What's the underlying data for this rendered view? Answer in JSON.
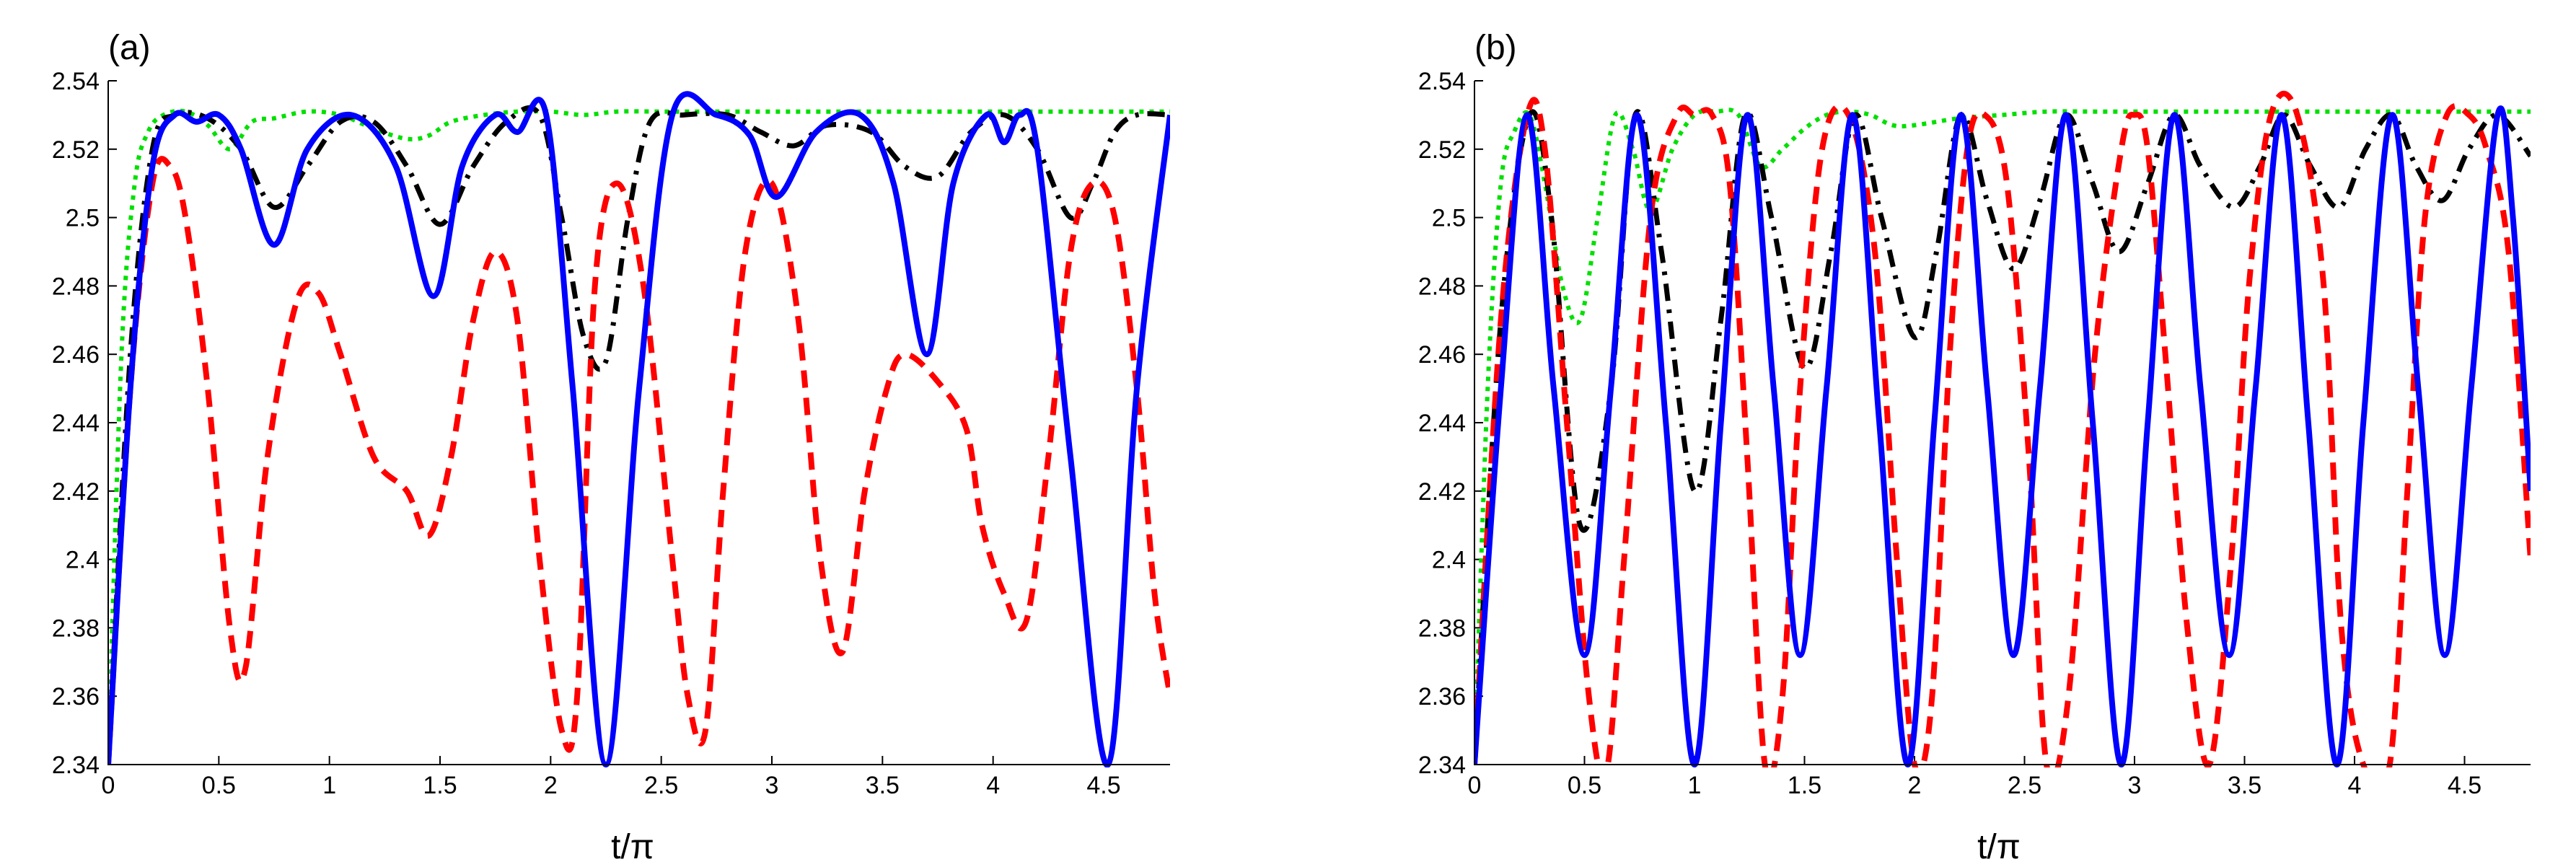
{
  "colors": {
    "blue": "#0000ff",
    "red": "#ff0000",
    "black": "#000000",
    "green": "#00e000"
  },
  "chart_data": [
    {
      "type": "line",
      "panel_label": "(a)",
      "xlabel": "t/π",
      "ylabel": "",
      "xlim": [
        0,
        4.8
      ],
      "ylim": [
        2.34,
        2.54
      ],
      "xticks": [
        "0",
        "0.5",
        "1",
        "1.5",
        "2",
        "2.5",
        "3",
        "3.5",
        "4",
        "4.5"
      ],
      "yticks": [
        "2.34",
        "2.36",
        "2.38",
        "2.4",
        "2.42",
        "2.44",
        "2.46",
        "2.48",
        "2.5",
        "2.52",
        "2.54"
      ],
      "series": [
        {
          "name": "solid-blue",
          "color": "blue",
          "style": "solid",
          "x": [
            0,
            0.1,
            0.2,
            0.3,
            0.4,
            0.5,
            0.6,
            0.75,
            0.9,
            1.1,
            1.3,
            1.47,
            1.6,
            1.75,
            1.85,
            1.98,
            2.1,
            2.25,
            2.4,
            2.55,
            2.75,
            2.9,
            3.02,
            3.2,
            3.4,
            3.55,
            3.7,
            3.82,
            3.97,
            4.05,
            4.12,
            4.2,
            4.35,
            4.52,
            4.65,
            4.8
          ],
          "y": [
            2.34,
            2.45,
            2.515,
            2.53,
            2.528,
            2.53,
            2.52,
            2.492,
            2.52,
            2.53,
            2.515,
            2.477,
            2.515,
            2.53,
            2.525,
            2.53,
            2.45,
            2.34,
            2.45,
            2.53,
            2.53,
            2.524,
            2.506,
            2.525,
            2.53,
            2.51,
            2.46,
            2.51,
            2.53,
            2.522,
            2.53,
            2.52,
            2.43,
            2.34,
            2.45,
            2.53
          ]
        },
        {
          "name": "dashed-red",
          "color": "red",
          "style": "dashed",
          "x": [
            0,
            0.1,
            0.2,
            0.28,
            0.35,
            0.45,
            0.55,
            0.62,
            0.72,
            0.85,
            0.95,
            1.05,
            1.2,
            1.35,
            1.45,
            1.55,
            1.65,
            1.75,
            1.85,
            1.95,
            2.05,
            2.12,
            2.2,
            2.3,
            2.42,
            2.55,
            2.62,
            2.7,
            2.78,
            2.88,
            3.0,
            3.12,
            3.22,
            3.32,
            3.42,
            3.52,
            3.6,
            3.75,
            3.88,
            3.95,
            4.05,
            4.15,
            4.25,
            4.35,
            4.45,
            4.55,
            4.65,
            4.73,
            4.8
          ],
          "y": [
            2.34,
            2.45,
            2.51,
            2.515,
            2.5,
            2.45,
            2.38,
            2.368,
            2.43,
            2.475,
            2.478,
            2.46,
            2.43,
            2.42,
            2.407,
            2.43,
            2.47,
            2.49,
            2.47,
            2.4,
            2.35,
            2.36,
            2.48,
            2.51,
            2.48,
            2.4,
            2.36,
            2.35,
            2.42,
            2.49,
            2.51,
            2.47,
            2.4,
            2.373,
            2.42,
            2.45,
            2.46,
            2.452,
            2.438,
            2.41,
            2.39,
            2.382,
            2.43,
            2.49,
            2.51,
            2.5,
            2.45,
            2.39,
            2.36
          ]
        },
        {
          "name": "dashdot-black",
          "color": "black",
          "style": "dashdot",
          "x": [
            0,
            0.1,
            0.2,
            0.3,
            0.45,
            0.6,
            0.75,
            0.9,
            1.05,
            1.2,
            1.35,
            1.5,
            1.65,
            1.8,
            1.95,
            2.05,
            2.15,
            2.25,
            2.35,
            2.45,
            2.6,
            2.8,
            2.95,
            3.1,
            3.25,
            3.45,
            3.6,
            3.75,
            3.9,
            4.05,
            4.2,
            4.35,
            4.45,
            4.55,
            4.65,
            4.8
          ],
          "y": [
            2.34,
            2.46,
            2.52,
            2.53,
            2.529,
            2.52,
            2.503,
            2.515,
            2.528,
            2.528,
            2.515,
            2.498,
            2.515,
            2.528,
            2.53,
            2.5,
            2.465,
            2.458,
            2.5,
            2.528,
            2.53,
            2.53,
            2.525,
            2.521,
            2.527,
            2.525,
            2.515,
            2.512,
            2.525,
            2.53,
            2.52,
            2.5,
            2.51,
            2.525,
            2.53,
            2.53
          ]
        },
        {
          "name": "dotted-green",
          "color": "green",
          "style": "dotted",
          "x": [
            0,
            0.06,
            0.12,
            0.18,
            0.25,
            0.35,
            0.45,
            0.55,
            0.65,
            0.75,
            0.9,
            1.05,
            1.2,
            1.35,
            1.45,
            1.55,
            1.7,
            1.85,
            2.0,
            2.15,
            2.3,
            2.5,
            2.7,
            2.9,
            3.1,
            3.3,
            3.5,
            3.7,
            3.9,
            4.1,
            4.3,
            4.5,
            4.7,
            4.8
          ],
          "y": [
            2.34,
            2.46,
            2.51,
            2.525,
            2.53,
            2.531,
            2.527,
            2.52,
            2.528,
            2.529,
            2.531,
            2.53,
            2.526,
            2.523,
            2.524,
            2.528,
            2.53,
            2.531,
            2.531,
            2.53,
            2.531,
            2.531,
            2.531,
            2.531,
            2.531,
            2.531,
            2.531,
            2.531,
            2.531,
            2.531,
            2.531,
            2.531,
            2.531,
            2.531
          ]
        }
      ]
    },
    {
      "type": "line",
      "panel_label": "(b)",
      "xlabel": "t/π",
      "ylabel": "",
      "xlim": [
        0,
        4.8
      ],
      "ylim": [
        2.34,
        2.54
      ],
      "xticks": [
        "0",
        "0.5",
        "1",
        "1.5",
        "2",
        "2.5",
        "3",
        "3.5",
        "4",
        "4.5"
      ],
      "yticks": [
        "2.34",
        "2.36",
        "2.38",
        "2.4",
        "2.42",
        "2.44",
        "2.46",
        "2.48",
        "2.5",
        "2.52",
        "2.54"
      ],
      "series": [
        {
          "name": "solid-blue",
          "color": "blue",
          "style": "solid",
          "x": [
            0,
            0.12,
            0.24,
            0.36,
            0.5,
            0.62,
            0.74,
            0.87,
            1.0,
            1.12,
            1.24,
            1.36,
            1.48,
            1.6,
            1.72,
            1.84,
            1.97,
            2.09,
            2.21,
            2.33,
            2.45,
            2.57,
            2.69,
            2.81,
            2.94,
            3.06,
            3.18,
            3.3,
            3.43,
            3.55,
            3.67,
            3.79,
            3.92,
            4.04,
            4.17,
            4.29,
            4.41,
            4.53,
            4.65,
            4.72,
            4.8
          ],
          "y": [
            2.34,
            2.45,
            2.53,
            2.45,
            2.372,
            2.45,
            2.53,
            2.44,
            2.34,
            2.44,
            2.53,
            2.45,
            2.372,
            2.45,
            2.53,
            2.44,
            2.34,
            2.44,
            2.53,
            2.45,
            2.372,
            2.45,
            2.53,
            2.44,
            2.34,
            2.44,
            2.53,
            2.45,
            2.372,
            2.45,
            2.53,
            2.44,
            2.34,
            2.44,
            2.53,
            2.45,
            2.372,
            2.45,
            2.53,
            2.5,
            2.42
          ]
        },
        {
          "name": "dashed-red",
          "color": "red",
          "style": "dashed",
          "x": [
            0,
            0.12,
            0.24,
            0.32,
            0.42,
            0.52,
            0.6,
            0.68,
            0.8,
            0.92,
            1.0,
            1.08,
            1.16,
            1.24,
            1.32,
            1.4,
            1.48,
            1.58,
            1.7,
            1.82,
            1.92,
            2.0,
            2.08,
            2.16,
            2.24,
            2.32,
            2.42,
            2.52,
            2.6,
            2.7,
            2.82,
            2.94,
            3.0,
            3.06,
            3.14,
            3.24,
            3.34,
            3.44,
            3.52,
            3.62,
            3.74,
            3.86,
            3.94,
            4.04,
            4.16,
            4.24,
            4.32,
            4.42,
            4.52,
            4.6,
            4.7,
            4.8
          ],
          "y": [
            2.34,
            2.47,
            2.53,
            2.52,
            2.44,
            2.36,
            2.338,
            2.4,
            2.5,
            2.53,
            2.53,
            2.53,
            2.51,
            2.43,
            2.34,
            2.36,
            2.45,
            2.52,
            2.53,
            2.49,
            2.4,
            2.34,
            2.36,
            2.46,
            2.52,
            2.53,
            2.51,
            2.43,
            2.34,
            2.36,
            2.46,
            2.52,
            2.53,
            2.52,
            2.46,
            2.38,
            2.34,
            2.4,
            2.48,
            2.53,
            2.53,
            2.48,
            2.38,
            2.34,
            2.34,
            2.42,
            2.5,
            2.53,
            2.53,
            2.52,
            2.49,
            2.4
          ]
        },
        {
          "name": "dashdot-black",
          "color": "black",
          "style": "dashdot",
          "x": [
            0,
            0.12,
            0.25,
            0.35,
            0.48,
            0.62,
            0.73,
            0.85,
            1.0,
            1.12,
            1.23,
            1.35,
            1.5,
            1.62,
            1.73,
            1.85,
            2.0,
            2.1,
            2.21,
            2.33,
            2.45,
            2.57,
            2.69,
            2.81,
            2.93,
            3.06,
            3.18,
            3.3,
            3.45,
            3.57,
            3.68,
            3.8,
            3.93,
            4.05,
            4.17,
            4.28,
            4.4,
            4.52,
            4.65,
            4.8
          ],
          "y": [
            2.34,
            2.47,
            2.53,
            2.5,
            2.41,
            2.45,
            2.53,
            2.49,
            2.42,
            2.47,
            2.53,
            2.5,
            2.456,
            2.49,
            2.53,
            2.5,
            2.465,
            2.49,
            2.53,
            2.505,
            2.485,
            2.505,
            2.53,
            2.51,
            2.49,
            2.51,
            2.53,
            2.515,
            2.503,
            2.515,
            2.53,
            2.515,
            2.503,
            2.52,
            2.53,
            2.515,
            2.505,
            2.52,
            2.53,
            2.518
          ]
        },
        {
          "name": "dotted-green",
          "color": "green",
          "style": "dotted",
          "x": [
            0,
            0.06,
            0.12,
            0.18,
            0.25,
            0.32,
            0.4,
            0.48,
            0.56,
            0.64,
            0.72,
            0.8,
            0.9,
            1.0,
            1.1,
            1.2,
            1.3,
            1.4,
            1.5,
            1.6,
            1.7,
            1.8,
            1.9,
            2.0,
            2.2,
            2.4,
            2.6,
            2.8,
            3.0,
            3.2,
            3.4,
            3.6,
            3.8,
            4.0,
            4.2,
            4.4,
            4.6,
            4.8
          ],
          "y": [
            2.34,
            2.45,
            2.51,
            2.525,
            2.53,
            2.51,
            2.48,
            2.47,
            2.5,
            2.53,
            2.52,
            2.502,
            2.52,
            2.53,
            2.531,
            2.53,
            2.515,
            2.52,
            2.526,
            2.53,
            2.531,
            2.53,
            2.527,
            2.527,
            2.529,
            2.53,
            2.531,
            2.531,
            2.531,
            2.531,
            2.531,
            2.531,
            2.531,
            2.531,
            2.531,
            2.531,
            2.531,
            2.531
          ]
        }
      ]
    }
  ]
}
